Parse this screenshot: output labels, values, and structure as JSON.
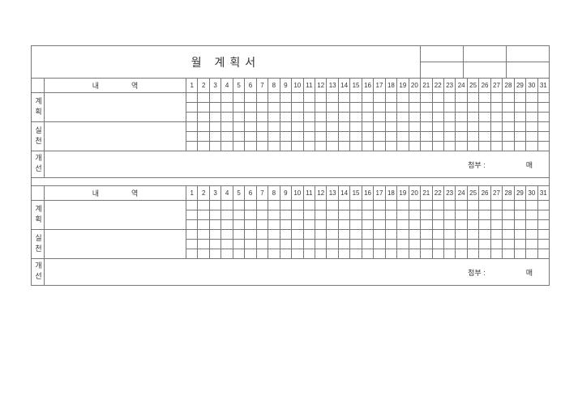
{
  "title": "월  계획서",
  "detail_header": "내역",
  "days": [
    "1",
    "2",
    "3",
    "4",
    "5",
    "6",
    "7",
    "8",
    "9",
    "10",
    "11",
    "12",
    "13",
    "14",
    "15",
    "16",
    "17",
    "18",
    "19",
    "20",
    "21",
    "22",
    "23",
    "24",
    "25",
    "26",
    "27",
    "28",
    "29",
    "30",
    "31"
  ],
  "section_labels": {
    "plan": "계획",
    "do": "실천",
    "improve": "개선"
  },
  "attach_label": "첨부 :",
  "sheets_label": "매",
  "colors": {
    "border": "#777777",
    "text": "#333333",
    "bg": "#ffffff"
  },
  "font": {
    "title_size_pt": 14,
    "cell_size_pt": 8,
    "label_size_pt": 9
  },
  "layout": {
    "label_col_w": 16,
    "detail_col_w": 175,
    "day_count": 31,
    "grid_subrows": 3
  }
}
